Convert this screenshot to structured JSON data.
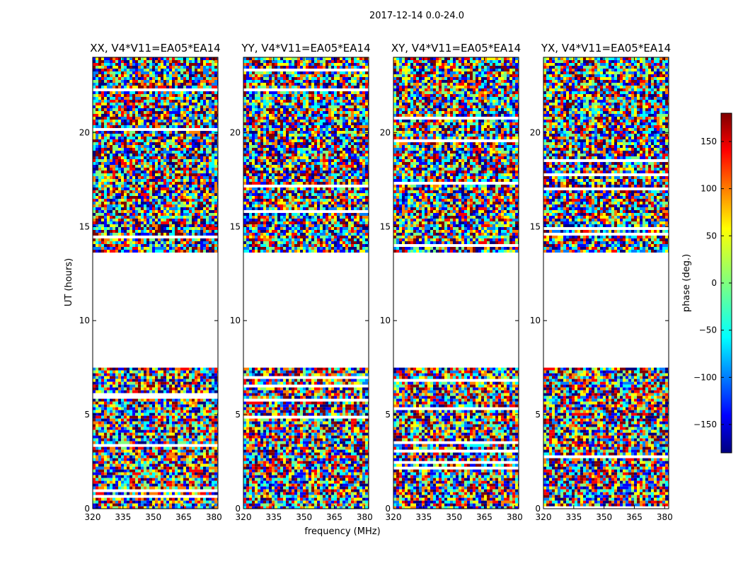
{
  "figure": {
    "suptitle": "2017-12-14 0.0-24.0",
    "xlabel": "frequency (MHz)",
    "ylabel": "UT (hours)",
    "colorbar_label": "phase (deg.)"
  },
  "chart_data": {
    "type": "heatmap",
    "colormap": "jet",
    "colorbar": {
      "min": -180,
      "max": 180,
      "ticks": [
        -150,
        -100,
        -50,
        0,
        50,
        100,
        150
      ],
      "tick_labels": [
        "−150",
        "−100",
        "−50",
        "0",
        "50",
        "100",
        "150"
      ]
    },
    "xlim": [
      320,
      382
    ],
    "ylim": [
      0,
      24
    ],
    "xticks": [
      320,
      335,
      350,
      365,
      380
    ],
    "yticks": [
      0,
      5,
      10,
      15,
      20
    ],
    "panels": [
      {
        "title": "XX, V4*V11=EA05*EA14",
        "show_yticks": true
      },
      {
        "title": "YY, V4*V11=EA05*EA14",
        "show_yticks": true
      },
      {
        "title": "XY, V4*V11=EA05*EA14",
        "show_yticks": true
      },
      {
        "title": "YX, V4*V11=EA05*EA14",
        "show_yticks": true
      }
    ],
    "data_blocks_hours": [
      [
        0.0,
        7.5
      ],
      [
        13.7,
        24.0
      ]
    ]
  },
  "colors": {
    "jet": [
      "#00007f",
      "#0000ff",
      "#007fff",
      "#00ffff",
      "#7fff7f",
      "#ffff00",
      "#ff7f00",
      "#ff0000",
      "#7f0000"
    ],
    "axes": "#000000",
    "background": "#ffffff"
  }
}
